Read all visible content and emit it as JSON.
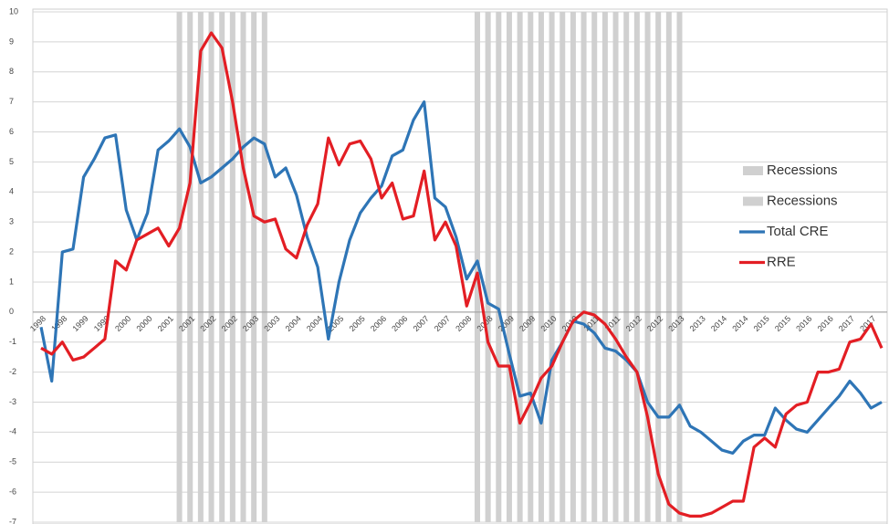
{
  "chart_data": {
    "type": "line",
    "categories": [
      "1998",
      null,
      "1998",
      null,
      "1999",
      null,
      "1999",
      null,
      "2000",
      null,
      "2000",
      null,
      "2001",
      null,
      "2001",
      null,
      "2002",
      null,
      "2002",
      null,
      "2003",
      null,
      "2003",
      null,
      "2004",
      null,
      "2004",
      null,
      "2005",
      null,
      "2005",
      null,
      "2006",
      null,
      "2006",
      null,
      "2007",
      null,
      "2007",
      null,
      "2008",
      null,
      "2008",
      null,
      "2009",
      null,
      "2009",
      null,
      "2010",
      null,
      "2010",
      null,
      "2011",
      null,
      "2011",
      null,
      "2012",
      null,
      "2012",
      null,
      "2013",
      null,
      "2013",
      null,
      "2014",
      null,
      "2014",
      null,
      "2015",
      null,
      "2015",
      null,
      "2016",
      null,
      "2016",
      null,
      "2017",
      null,
      "2017",
      null
    ],
    "series": [
      {
        "name": "Recessions",
        "type": "bar",
        "color": "#d0d0d0",
        "values": [
          null,
          null,
          null,
          null,
          null,
          null,
          null,
          null,
          null,
          null,
          null,
          null,
          null,
          10,
          10,
          10,
          10,
          10,
          10,
          10,
          10,
          10,
          null,
          null,
          null,
          null,
          null,
          null,
          null,
          null,
          null,
          null,
          null,
          null,
          null,
          null,
          null,
          null,
          null,
          null,
          null,
          10,
          10,
          10,
          10,
          10,
          10,
          10,
          10,
          10,
          10,
          10,
          10,
          10,
          10,
          10,
          10,
          10,
          10,
          10,
          10,
          null,
          null,
          null,
          null,
          null,
          null,
          null,
          null,
          null,
          null,
          null,
          null,
          null,
          null,
          null,
          null,
          null,
          null,
          null
        ]
      },
      {
        "name": "Recessions",
        "type": "bar",
        "color": "#d0d0d0",
        "values": [
          null,
          null,
          null,
          null,
          null,
          null,
          null,
          null,
          null,
          null,
          null,
          null,
          null,
          -7,
          -7,
          -7,
          -7,
          -7,
          -7,
          -7,
          -7,
          -7,
          null,
          null,
          null,
          null,
          null,
          null,
          null,
          null,
          null,
          null,
          null,
          null,
          null,
          null,
          null,
          null,
          null,
          null,
          null,
          -7,
          -7,
          -7,
          -7,
          -7,
          -7,
          -7,
          -7,
          -7,
          -7,
          -7,
          -7,
          -7,
          -7,
          -7,
          -7,
          -7,
          -7,
          -7,
          -7,
          null,
          null,
          null,
          null,
          null,
          null,
          null,
          null,
          null,
          null,
          null,
          null,
          null,
          null,
          null,
          null,
          null,
          null,
          null
        ]
      },
      {
        "name": "Total CRE",
        "type": "line",
        "color": "#2e75b6",
        "values": [
          -0.5,
          -2.3,
          2.0,
          2.1,
          4.5,
          5.1,
          5.8,
          5.9,
          3.4,
          2.4,
          3.3,
          5.4,
          5.7,
          6.1,
          5.5,
          4.3,
          4.5,
          4.8,
          5.1,
          5.5,
          5.8,
          5.6,
          4.5,
          4.8,
          3.9,
          2.5,
          1.5,
          -0.9,
          1.0,
          2.4,
          3.3,
          3.8,
          4.2,
          5.2,
          5.4,
          6.4,
          7.0,
          3.8,
          3.5,
          2.5,
          1.1,
          1.7,
          0.3,
          0.1,
          -1.4,
          -2.8,
          -2.7,
          -3.7,
          -1.6,
          -1.0,
          -0.3,
          -0.4,
          -0.7,
          -1.2,
          -1.3,
          -1.6,
          -2.0,
          -3.0,
          -3.5,
          -3.5,
          -3.1,
          -3.8,
          -4.0,
          -4.3,
          -4.6,
          -4.7,
          -4.3,
          -4.1,
          -4.1,
          -3.2,
          -3.6,
          -3.9,
          -4.0,
          -3.6,
          -3.2,
          -2.8,
          -2.3,
          -2.7,
          -3.2,
          -3.0
        ]
      },
      {
        "name": "RRE",
        "type": "line",
        "color": "#e31e24",
        "values": [
          -1.2,
          -1.4,
          -1.0,
          -1.6,
          -1.5,
          -1.2,
          -0.9,
          1.7,
          1.4,
          2.4,
          2.6,
          2.8,
          2.2,
          2.8,
          4.3,
          8.7,
          9.3,
          8.8,
          7.0,
          4.8,
          3.2,
          3.0,
          3.1,
          2.1,
          1.8,
          2.9,
          3.6,
          5.8,
          4.9,
          5.6,
          5.7,
          5.1,
          3.8,
          4.3,
          3.1,
          3.2,
          4.7,
          2.4,
          3.0,
          2.2,
          0.2,
          1.3,
          -1.0,
          -1.8,
          -1.8,
          -3.7,
          -3.0,
          -2.2,
          -1.8,
          -1.0,
          -0.3,
          0.0,
          -0.1,
          -0.4,
          -0.9,
          -1.5,
          -2.0,
          -3.5,
          -5.4,
          -6.4,
          -6.7,
          -6.8,
          -6.8,
          -6.7,
          -6.5,
          -6.3,
          -6.3,
          -4.5,
          -4.2,
          -4.5,
          -3.4,
          -3.1,
          -3.0,
          -2.0,
          -2.0,
          -1.9,
          -1.0,
          -0.9,
          -0.4,
          -1.2
        ]
      }
    ],
    "ylim": [
      -7,
      10
    ],
    "yticks": [
      -7,
      -6,
      -5,
      -4,
      -3,
      -2,
      -1,
      0,
      1,
      2,
      3,
      4,
      5,
      6,
      7,
      8,
      9,
      10
    ],
    "grid": true,
    "legend": "right"
  }
}
